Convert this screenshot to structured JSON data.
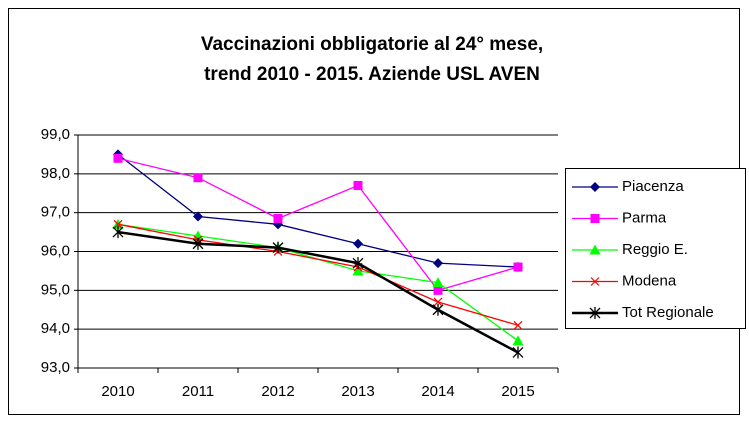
{
  "chart_data": {
    "type": "line",
    "title": [
      "Vaccinazioni obbligatorie al 24° mese,",
      "trend 2010 - 2015. Aziende USL AVEN"
    ],
    "categories": [
      "2010",
      "2011",
      "2012",
      "2013",
      "2014",
      "2015"
    ],
    "series": [
      {
        "name": "Piacenza",
        "color": "#000080",
        "marker": "diamond",
        "values": [
          98.5,
          96.9,
          96.7,
          96.2,
          95.7,
          95.6
        ]
      },
      {
        "name": "Parma",
        "color": "#ff00ff",
        "marker": "square",
        "values": [
          98.4,
          97.9,
          96.85,
          97.7,
          95.0,
          95.6
        ]
      },
      {
        "name": "Reggio E.",
        "color": "#00ff00",
        "marker": "triangle",
        "values": [
          96.7,
          96.4,
          96.1,
          95.5,
          95.2,
          93.7
        ]
      },
      {
        "name": "Modena",
        "color": "#ff0000",
        "marker": "x",
        "values": [
          96.7,
          96.3,
          96.0,
          95.6,
          94.7,
          94.1
        ]
      },
      {
        "name": "Tot Regionale",
        "color": "#000000",
        "marker": "star",
        "values": [
          96.5,
          96.2,
          96.1,
          95.7,
          94.5,
          93.4
        ]
      }
    ],
    "ylim": [
      93,
      99
    ],
    "yticks": [
      {
        "value": 93,
        "label": "93,0"
      },
      {
        "value": 94,
        "label": "94,0"
      },
      {
        "value": 95,
        "label": "95,0"
      },
      {
        "value": 96,
        "label": "96,0"
      },
      {
        "value": 97,
        "label": "97,0"
      },
      {
        "value": 98,
        "label": "98,0"
      },
      {
        "value": 99,
        "label": "99,0"
      }
    ],
    "grid": true,
    "legend": "right"
  }
}
